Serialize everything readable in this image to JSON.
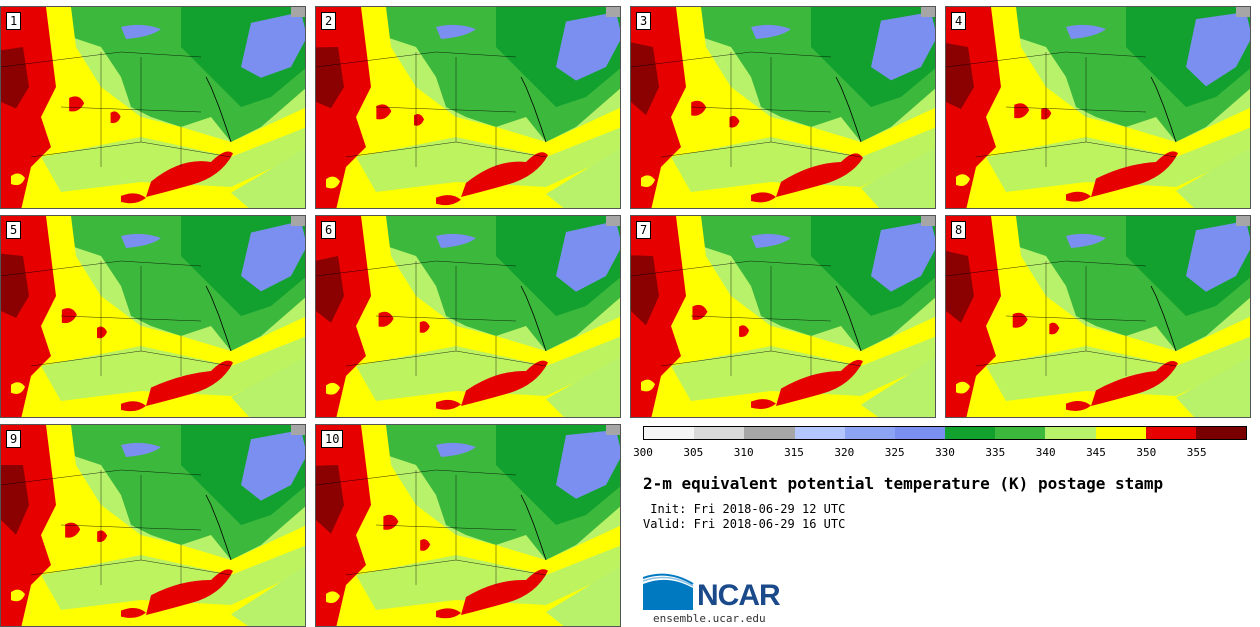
{
  "title": "2-m equivalent potential temperature (K) postage stamp",
  "init_label": " Init:",
  "init_time": "Fri 2018-06-29 12 UTC",
  "valid_label": "Valid:",
  "valid_time": "Fri 2018-06-29 16 UTC",
  "logo_text": "NCAR",
  "website": "ensemble.ucar.edu",
  "members": [
    {
      "label": "1"
    },
    {
      "label": "2"
    },
    {
      "label": "3"
    },
    {
      "label": "4"
    },
    {
      "label": "5"
    },
    {
      "label": "6"
    },
    {
      "label": "7"
    },
    {
      "label": "8"
    },
    {
      "label": "9"
    },
    {
      "label": "10"
    }
  ],
  "colorbar": {
    "ticks": [
      "300",
      "305",
      "310",
      "315",
      "320",
      "325",
      "330",
      "335",
      "340",
      "345",
      "350",
      "355"
    ],
    "colors": [
      "#f5f5f5",
      "#d9d9d9",
      "#a6a6a6",
      "#b3c6ff",
      "#8da4f5",
      "#7a8ff0",
      "#12a12e",
      "#3cb83c",
      "#b7f26a",
      "#ffff00",
      "#e60000",
      "#7a0000"
    ]
  },
  "colors": {
    "red": "#e60000",
    "dark_red": "#8b0000",
    "yellow": "#ffff00",
    "light_green": "#b7f26a",
    "green": "#3cb83c",
    "dark_green": "#12a12e",
    "blue": "#7a8ff0",
    "gray": "#a6a6a6"
  }
}
